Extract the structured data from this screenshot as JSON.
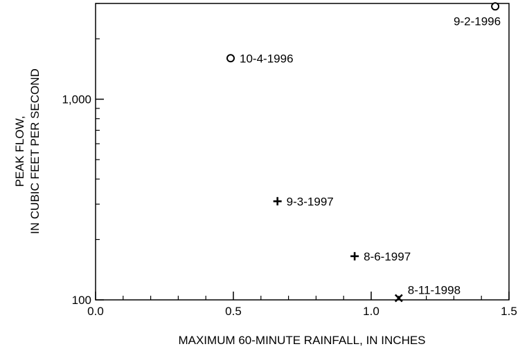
{
  "chart_data": {
    "type": "scatter",
    "title": "",
    "xlabel": "MAXIMUM 60-MINUTE RAINFALL, IN INCHES",
    "ylabel_lines": [
      "PEAK FLOW,",
      "IN CUBIC FEET PER SECOND"
    ],
    "xlim": [
      0.0,
      1.5
    ],
    "ylim": [
      100,
      3000
    ],
    "yscale": "log",
    "grid": false,
    "x_ticks": [
      {
        "value": 0.0,
        "label": "0.0"
      },
      {
        "value": 0.5,
        "label": "0.5"
      },
      {
        "value": 1.0,
        "label": "1.0"
      },
      {
        "value": 1.5,
        "label": "1.5"
      }
    ],
    "x_minor_ticks": [
      0.1,
      0.2,
      0.3,
      0.4,
      0.6,
      0.7,
      0.8,
      0.9,
      1.1,
      1.2,
      1.3,
      1.4
    ],
    "y_ticks": [
      {
        "value": 100,
        "label": "100"
      },
      {
        "value": 1000,
        "label": "1,000"
      }
    ],
    "y_minor_ticks": [
      200,
      300,
      400,
      500,
      600,
      700,
      800,
      900,
      2000,
      3000
    ],
    "points": [
      {
        "label": "9-2-1996",
        "x": 1.45,
        "y": 2900,
        "marker": "circle",
        "label_pos": "below-left"
      },
      {
        "label": "10-4-1996",
        "x": 0.49,
        "y": 1600,
        "marker": "circle",
        "label_pos": "right"
      },
      {
        "label": "9-3-1997",
        "x": 0.66,
        "y": 310,
        "marker": "plus",
        "label_pos": "right"
      },
      {
        "label": "8-6-1997",
        "x": 0.94,
        "y": 165,
        "marker": "plus",
        "label_pos": "right"
      },
      {
        "label": "8-11-1998",
        "x": 1.1,
        "y": 102,
        "marker": "cross",
        "label_pos": "above-right"
      }
    ]
  }
}
